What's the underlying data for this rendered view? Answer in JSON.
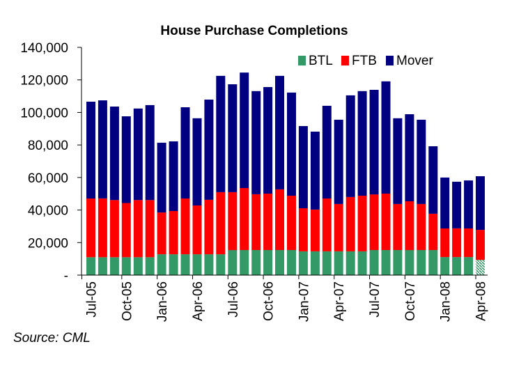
{
  "chart_data": {
    "type": "bar",
    "stacked": true,
    "title": "House Purchase Completions",
    "xlabel": "",
    "ylabel": "",
    "ylim": [
      0,
      140000
    ],
    "yticks": [
      0,
      20000,
      40000,
      60000,
      80000,
      100000,
      120000,
      140000
    ],
    "ytick_labels": [
      "-",
      "20,000",
      "40,000",
      "60,000",
      "80,000",
      "100,000",
      "120,000",
      "140,000"
    ],
    "categories": [
      "Jul-05",
      "Aug-05",
      "Sep-05",
      "Oct-05",
      "Nov-05",
      "Dec-05",
      "Jan-06",
      "Feb-06",
      "Mar-06",
      "Apr-06",
      "May-06",
      "Jun-06",
      "Jul-06",
      "Aug-06",
      "Sep-06",
      "Oct-06",
      "Nov-06",
      "Dec-06",
      "Jan-07",
      "Feb-07",
      "Mar-07",
      "Apr-07",
      "May-07",
      "Jun-07",
      "Jul-07",
      "Aug-07",
      "Sep-07",
      "Oct-07",
      "Nov-07",
      "Dec-07",
      "Jan-08",
      "Feb-08",
      "Mar-08",
      "Apr-08"
    ],
    "xtick_labels": [
      "Jul-05",
      "Oct-05",
      "Jan-06",
      "Apr-06",
      "Jul-06",
      "Oct-06",
      "Jan-07",
      "Apr-07",
      "Jul-07",
      "Oct-07",
      "Jan-08",
      "Apr-08"
    ],
    "xtick_every": 3,
    "grid": false,
    "legend": "top-right",
    "series": [
      {
        "name": "BTL",
        "color": "#339966",
        "values": [
          11000,
          11000,
          11000,
          11000,
          11000,
          11000,
          12800,
          12800,
          12800,
          12800,
          12800,
          12800,
          15400,
          15400,
          15400,
          15400,
          15400,
          15400,
          14600,
          14600,
          14600,
          14600,
          14600,
          14600,
          15400,
          15400,
          15400,
          15400,
          15400,
          15400,
          11100,
          11100,
          11100,
          9400
        ],
        "estimated_last": true
      },
      {
        "name": "FTB",
        "color": "#ff0000",
        "values": [
          36100,
          36100,
          35100,
          33300,
          35100,
          35100,
          25700,
          26600,
          34300,
          30000,
          33500,
          38200,
          35600,
          38100,
          34300,
          34700,
          37300,
          33400,
          26500,
          25700,
          32500,
          29100,
          33400,
          34200,
          34200,
          34700,
          28300,
          30000,
          28300,
          22300,
          17600,
          17600,
          17600,
          18400
        ]
      },
      {
        "name": "Mover",
        "color": "#000080",
        "values": [
          59500,
          60300,
          57500,
          53300,
          56300,
          58400,
          42900,
          42800,
          56100,
          53600,
          61600,
          71500,
          66300,
          71000,
          63400,
          65500,
          69800,
          63400,
          50500,
          47900,
          57000,
          51800,
          62500,
          64300,
          64300,
          69000,
          52700,
          53500,
          51800,
          41500,
          31300,
          28700,
          29500,
          33000
        ]
      }
    ]
  },
  "source_text": "Source: CML"
}
